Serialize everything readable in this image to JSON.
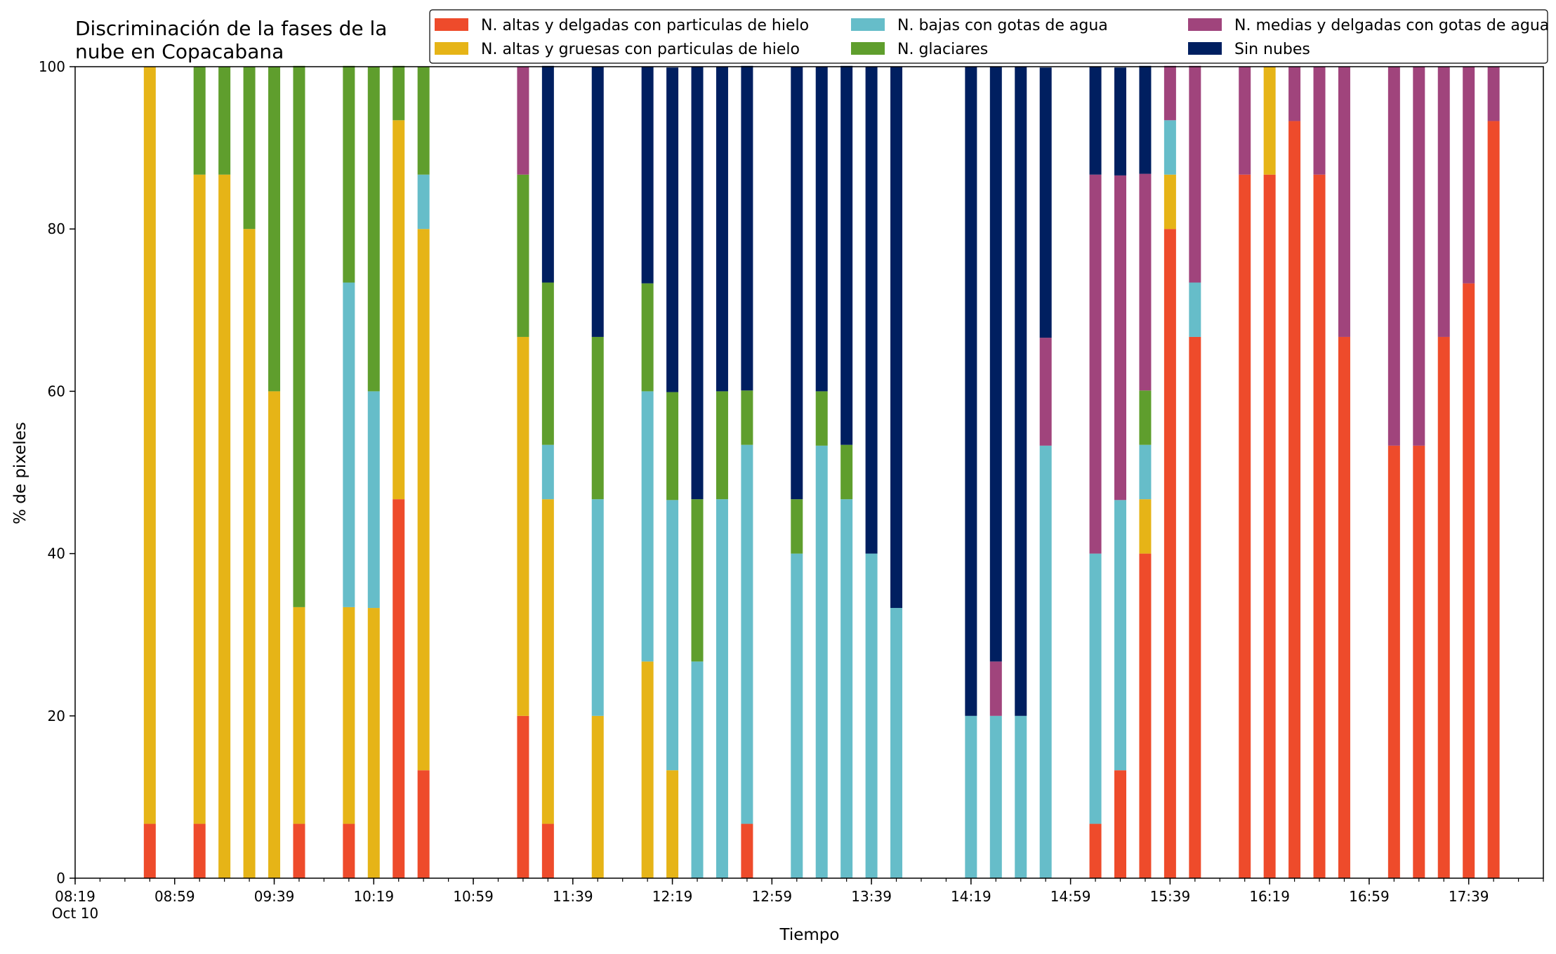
{
  "chart_data": {
    "type": "bar",
    "stacked": true,
    "title": "Discriminación de la fases de la nube en Copacabana",
    "title_lines": [
      "Discriminación de la fases de la",
      "nube en Copacabana"
    ],
    "xlabel": "Tiempo",
    "ylabel": "% de pixeles",
    "ylim": [
      0,
      100
    ],
    "yticks": [
      "0",
      "20",
      "40",
      "60",
      "80",
      "100"
    ],
    "xlim": [
      "08:19",
      "18:09"
    ],
    "date_label": "Oct 10",
    "xtick_labels": [
      "08:19",
      "08:59",
      "09:39",
      "10:19",
      "10:59",
      "11:39",
      "12:19",
      "12:59",
      "13:39",
      "14:19",
      "14:59",
      "15:39",
      "16:19",
      "16:59",
      "17:39"
    ],
    "grid": false,
    "legend_placement": "top",
    "legend": [
      {
        "name": "N. altas y delgadas con particulas de hielo",
        "color": "#ee4b2b"
      },
      {
        "name": "N. altas y gruesas con particulas de hielo",
        "color": "#e6b417"
      },
      {
        "name": "N. bajas con gotas de agua",
        "color": "#66bdc9"
      },
      {
        "name": "N. glaciares",
        "color": "#5f9e2d"
      },
      {
        "name": "N. medias y delgadas con gotas de agua",
        "color": "#a0447c"
      },
      {
        "name": "Sin nubes",
        "color": "#001f60"
      }
    ],
    "series_order": [
      "N. altas y delgadas con particulas de hielo",
      "N. altas y gruesas con particulas de hielo",
      "N. bajas con gotas de agua",
      "N. glaciares",
      "N. medias y delgadas con gotas de agua",
      "Sin nubes"
    ],
    "bars": [
      {
        "time": "08:49",
        "values": [
          6.7,
          93.3,
          0,
          0,
          0,
          0
        ]
      },
      {
        "time": "09:09",
        "values": [
          6.7,
          80,
          0,
          13.3,
          0,
          0
        ]
      },
      {
        "time": "09:19",
        "values": [
          0,
          86.7,
          0,
          13.3,
          0,
          0
        ]
      },
      {
        "time": "09:29",
        "values": [
          0,
          80,
          0,
          20,
          0,
          0
        ]
      },
      {
        "time": "09:39",
        "values": [
          0,
          60,
          0,
          40,
          0,
          0
        ]
      },
      {
        "time": "09:49",
        "values": [
          6.7,
          26.7,
          0,
          66.7,
          0,
          0
        ]
      },
      {
        "time": "10:09",
        "values": [
          6.7,
          26.7,
          40,
          26.7,
          0,
          0
        ]
      },
      {
        "time": "10:19",
        "values": [
          0,
          33.3,
          26.7,
          40,
          0,
          0
        ]
      },
      {
        "time": "10:29",
        "values": [
          46.7,
          46.7,
          0,
          6.7,
          0,
          0
        ]
      },
      {
        "time": "10:39",
        "values": [
          13.3,
          66.7,
          6.7,
          13.3,
          0,
          0
        ]
      },
      {
        "time": "11:19",
        "values": [
          20,
          46.7,
          0,
          20,
          13.3,
          0
        ]
      },
      {
        "time": "11:29",
        "values": [
          6.7,
          40,
          6.7,
          20,
          0,
          26.7
        ]
      },
      {
        "time": "11:49",
        "values": [
          0,
          20,
          26.7,
          20,
          0,
          33.3
        ]
      },
      {
        "time": "12:09",
        "values": [
          0,
          26.7,
          33.3,
          13.3,
          0,
          26.7
        ]
      },
      {
        "time": "12:19",
        "values": [
          0,
          13.3,
          33.3,
          13.3,
          0,
          40
        ]
      },
      {
        "time": "12:29",
        "values": [
          0,
          0,
          26.7,
          20,
          0,
          53.3
        ]
      },
      {
        "time": "12:39",
        "values": [
          0,
          0,
          46.7,
          13.3,
          0,
          40
        ]
      },
      {
        "time": "12:49",
        "values": [
          6.7,
          0,
          46.7,
          6.7,
          0,
          40
        ]
      },
      {
        "time": "13:09",
        "values": [
          0,
          0,
          40,
          6.7,
          0,
          53.3
        ]
      },
      {
        "time": "13:19",
        "values": [
          0,
          0,
          53.3,
          6.7,
          0,
          40
        ]
      },
      {
        "time": "13:29",
        "values": [
          0,
          0,
          46.7,
          6.7,
          0,
          46.7
        ]
      },
      {
        "time": "13:39",
        "values": [
          0,
          0,
          40,
          0,
          0,
          60
        ]
      },
      {
        "time": "13:49",
        "values": [
          0,
          0,
          33.3,
          0,
          0,
          66.7
        ]
      },
      {
        "time": "14:19",
        "values": [
          0,
          0,
          20,
          0,
          0,
          80
        ]
      },
      {
        "time": "14:29",
        "values": [
          0,
          0,
          20,
          0,
          6.7,
          73.3
        ]
      },
      {
        "time": "14:39",
        "values": [
          0,
          0,
          20,
          0,
          0,
          80
        ]
      },
      {
        "time": "14:49",
        "values": [
          0,
          0,
          53.3,
          0,
          13.3,
          33.3
        ]
      },
      {
        "time": "15:09",
        "values": [
          6.7,
          0,
          33.3,
          0,
          46.7,
          13.3
        ]
      },
      {
        "time": "15:19",
        "values": [
          13.3,
          0,
          33.3,
          0,
          40,
          13.3
        ]
      },
      {
        "time": "15:29",
        "values": [
          40,
          6.7,
          6.7,
          6.7,
          26.7,
          13.3
        ]
      },
      {
        "time": "15:39",
        "values": [
          80,
          6.7,
          6.7,
          0,
          6.7,
          0
        ]
      },
      {
        "time": "15:49",
        "values": [
          66.7,
          0,
          6.7,
          0,
          26.7,
          0
        ]
      },
      {
        "time": "16:09",
        "values": [
          86.7,
          0,
          0,
          0,
          13.3,
          0
        ]
      },
      {
        "time": "16:19",
        "values": [
          86.7,
          13.3,
          0,
          0,
          0,
          0
        ]
      },
      {
        "time": "16:29",
        "values": [
          93.3,
          0,
          0,
          0,
          6.7,
          0
        ]
      },
      {
        "time": "16:39",
        "values": [
          86.7,
          0,
          0,
          0,
          13.3,
          0
        ]
      },
      {
        "time": "16:49",
        "values": [
          66.7,
          0,
          0,
          0,
          33.3,
          0
        ]
      },
      {
        "time": "17:09",
        "values": [
          53.3,
          0,
          0,
          0,
          46.7,
          0
        ]
      },
      {
        "time": "17:19",
        "values": [
          53.3,
          0,
          0,
          0,
          46.7,
          0
        ]
      },
      {
        "time": "17:29",
        "values": [
          66.7,
          0,
          0,
          0,
          33.3,
          0
        ]
      },
      {
        "time": "17:39",
        "values": [
          73.3,
          0,
          0,
          0,
          26.7,
          0
        ]
      },
      {
        "time": "17:49",
        "values": [
          93.3,
          0,
          0,
          0,
          6.7,
          0
        ]
      }
    ]
  }
}
